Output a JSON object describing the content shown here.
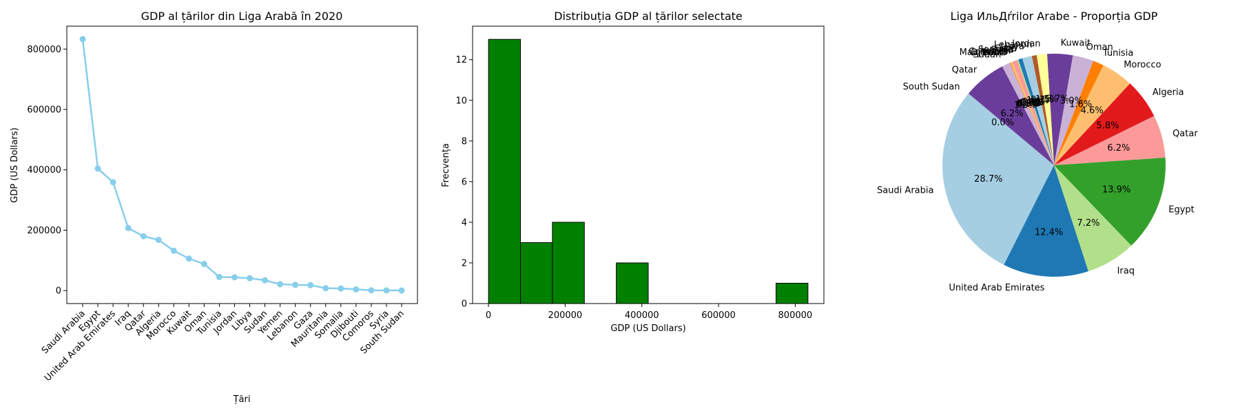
{
  "colors": {
    "line": "#87CEEB",
    "hist_bar": "#008000",
    "pie_palette": [
      "#a6cee3",
      "#1f78b4",
      "#b2df8a",
      "#33a02c",
      "#fb9a99",
      "#e31a1c",
      "#fdbf6f",
      "#ff7f00",
      "#cab2d6",
      "#6a3d9a",
      "#ffff99",
      "#b15928"
    ]
  },
  "chart_data": [
    {
      "type": "line",
      "title": "GDP al țărilor din Liga Arabă în 2020",
      "xlabel": "Țări",
      "ylabel": "GDP (US Dollars)",
      "categories": [
        "Saudi Arabia",
        "Egypt",
        "United Arab Emirates",
        "Iraq",
        "Qatar",
        "Algeria",
        "Morocco",
        "Kuwait",
        "Oman",
        "Tunisia",
        "Jordan",
        "Libya",
        "Sudan",
        "Yemen",
        "Lebanon",
        "Gaza",
        "Mauritania",
        "Somalia",
        "Djibouti",
        "Comoros",
        "Syria",
        "South Sudan"
      ],
      "values": [
        833000,
        404000,
        359000,
        207000,
        180000,
        168000,
        132000,
        106000,
        88000,
        45000,
        44000,
        41000,
        34000,
        21000,
        19000,
        18000,
        8000,
        7000,
        4000,
        1000,
        500,
        200
      ],
      "yticks": [
        0,
        200000,
        400000,
        600000,
        800000
      ],
      "ylim": [
        -43000,
        876000
      ],
      "grid": false
    },
    {
      "type": "bar",
      "subtype": "histogram",
      "title": "Distribuția GDP al țărilor selectate",
      "xlabel": "GDP (US Dollars)",
      "ylabel": "Frecvența",
      "bin_edges": [
        200,
        83500,
        166800,
        250100,
        333400,
        416700,
        500000,
        583300,
        666600,
        749900,
        833200
      ],
      "counts": [
        13,
        3,
        4,
        0,
        2,
        0,
        0,
        0,
        0,
        1
      ],
      "xticks": [
        0,
        200000,
        400000,
        600000,
        800000
      ],
      "yticks": [
        0,
        2,
        4,
        6,
        8,
        10,
        12
      ],
      "xlim": [
        -41400,
        874800
      ],
      "ylim": [
        0,
        13.65
      ],
      "grid": false
    },
    {
      "type": "pie",
      "title": "Liga ИльДŕrilor Arabe - Proporția GDP",
      "slices": [
        {
          "label": "Saudi Arabia",
          "value": 28.7,
          "pct": "28.7%"
        },
        {
          "label": "United Arab Emirates",
          "value": 12.4,
          "pct": "12.4%"
        },
        {
          "label": "Iraq",
          "value": 7.2,
          "pct": "7.2%"
        },
        {
          "label": "Egypt",
          "value": 13.9,
          "pct": "13.9%"
        },
        {
          "label": "Qatar",
          "value": 6.2,
          "pct": "6.2%"
        },
        {
          "label": "Algeria",
          "value": 5.8,
          "pct": "5.8%"
        },
        {
          "label": "Morocco",
          "value": 4.6,
          "pct": "4.6%"
        },
        {
          "label": "Tunisia",
          "value": 1.6,
          "pct": "1.6%"
        },
        {
          "label": "Oman",
          "value": 3.0,
          "pct": "3.0%"
        },
        {
          "label": "Kuwait",
          "value": 3.7,
          "pct": "3.7%"
        },
        {
          "label": "Jordan",
          "value": 1.5,
          "pct": "1.5%"
        },
        {
          "label": "Lebanon",
          "value": 0.7,
          "pct": "0.7%"
        },
        {
          "label": "Libya",
          "value": 1.4,
          "pct": "1.4%"
        },
        {
          "label": "Gaza",
          "value": 0.6,
          "pct": "0.6%"
        },
        {
          "label": "Somalia",
          "value": 0.2,
          "pct": "0.2%"
        },
        {
          "label": "Syria",
          "value": 0.0,
          "pct": "0.0%"
        },
        {
          "label": "Yemen",
          "value": 0.7,
          "pct": "0.7%"
        },
        {
          "label": "Comoros",
          "value": 0.0,
          "pct": "0.0%"
        },
        {
          "label": "Mauritania",
          "value": 0.3,
          "pct": "0.3%"
        },
        {
          "label": "Djibouti",
          "value": 0.1,
          "pct": "0.1%"
        },
        {
          "label": "Sudan",
          "value": 1.2,
          "pct": "1.2%"
        },
        {
          "label": "Qatar",
          "value": 6.2,
          "pct": "6.2%"
        },
        {
          "label": "South Sudan",
          "value": 0.0,
          "pct": "0.0%"
        }
      ]
    }
  ]
}
